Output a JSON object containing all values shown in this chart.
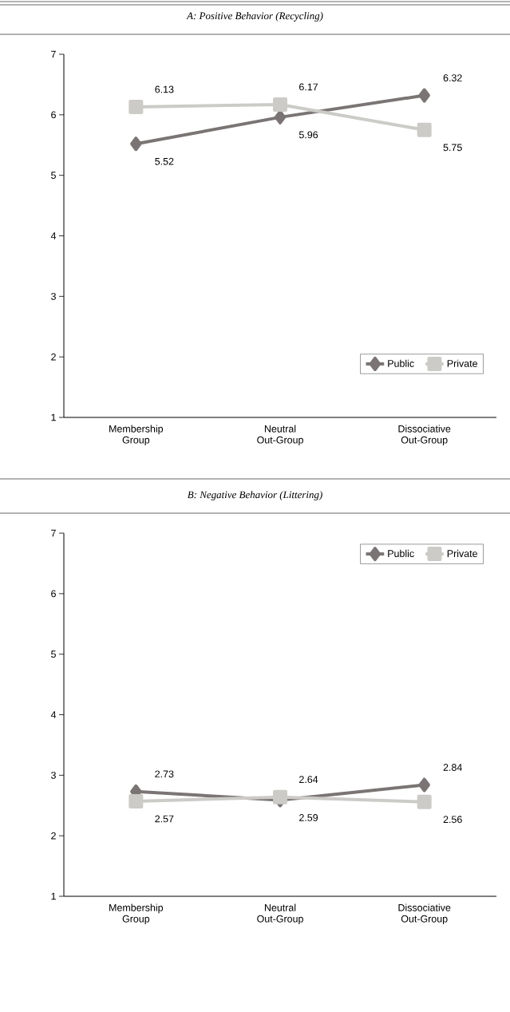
{
  "chart_data": [
    {
      "type": "line",
      "title": "A: Positive Behavior (Recycling)",
      "categories": [
        "Membership Group",
        "Neutral Out-Group",
        "Dissociative Out-Group"
      ],
      "series": [
        {
          "name": "Public",
          "color": "#7a7574",
          "marker": "diamond",
          "values": [
            5.52,
            5.96,
            6.32
          ]
        },
        {
          "name": "Private",
          "color": "#cccbc8",
          "marker": "square",
          "values": [
            6.13,
            6.17,
            5.75
          ]
        }
      ],
      "ylim": [
        1,
        7
      ],
      "yticks": [
        1,
        2,
        3,
        4,
        5,
        6,
        7
      ],
      "grid": false,
      "legend": "bottom right",
      "data_labels": true
    },
    {
      "type": "line",
      "title": "B: Negative Behavior (Littering)",
      "categories": [
        "Membership Group",
        "Neutral Out-Group",
        "Dissociative Out-Group"
      ],
      "series": [
        {
          "name": "Public",
          "color": "#7a7574",
          "marker": "diamond",
          "values": [
            2.73,
            2.59,
            2.84
          ]
        },
        {
          "name": "Private",
          "color": "#cccbc8",
          "marker": "square",
          "values": [
            2.57,
            2.64,
            2.56
          ]
        }
      ],
      "ylim": [
        1,
        7
      ],
      "yticks": [
        1,
        2,
        3,
        4,
        5,
        6,
        7
      ],
      "grid": false,
      "legend": "top right",
      "data_labels": true
    }
  ]
}
